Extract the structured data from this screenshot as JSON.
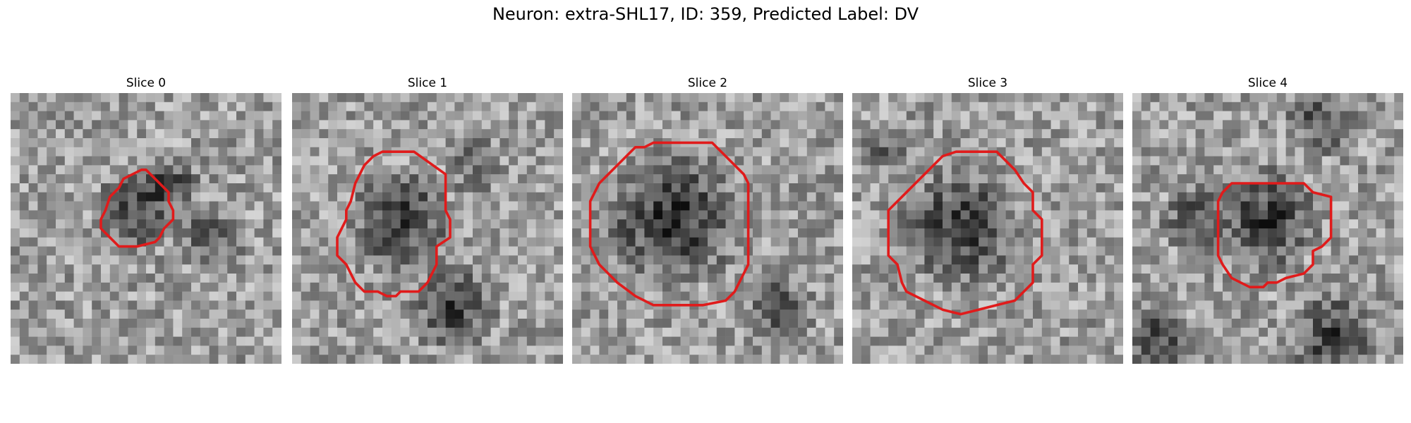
{
  "figure": {
    "title": "Neuron: extra-SHL17, ID: 359, Predicted Label: DV"
  },
  "contour_color": "#e01b1b",
  "panels": [
    {
      "title": "Slice 0",
      "contour": [
        [
          15,
          8.5
        ],
        [
          16,
          9.5
        ],
        [
          16.5,
          10
        ],
        [
          17.5,
          11
        ],
        [
          17.5,
          12
        ],
        [
          18,
          13
        ],
        [
          18,
          14
        ],
        [
          17,
          15
        ],
        [
          16.5,
          16
        ],
        [
          16,
          16.5
        ],
        [
          14,
          17
        ],
        [
          12,
          17
        ],
        [
          11,
          16
        ],
        [
          10,
          15
        ],
        [
          10,
          14
        ],
        [
          10.5,
          13
        ],
        [
          11,
          11.5
        ],
        [
          12,
          10.5
        ],
        [
          12.5,
          9.5
        ],
        [
          13.5,
          9
        ],
        [
          14.5,
          8.5
        ]
      ],
      "dark_blobs": [
        [
          14,
          13,
          5,
          0.35
        ],
        [
          18,
          10,
          3,
          0.3
        ],
        [
          22,
          16,
          4,
          0.25
        ]
      ]
    },
    {
      "title": "Slice 1",
      "contour": [
        [
          10,
          6.5
        ],
        [
          13.5,
          6.5
        ],
        [
          17,
          9
        ],
        [
          17,
          13
        ],
        [
          17.5,
          14
        ],
        [
          17.5,
          16
        ],
        [
          16,
          17
        ],
        [
          16,
          19
        ],
        [
          15,
          21
        ],
        [
          14,
          22
        ],
        [
          12,
          22
        ],
        [
          11.5,
          22.5
        ],
        [
          10.5,
          22.5
        ],
        [
          9.5,
          22
        ],
        [
          8,
          22
        ],
        [
          7,
          21
        ],
        [
          6,
          19
        ],
        [
          5,
          18
        ],
        [
          5,
          16
        ],
        [
          6,
          14
        ],
        [
          6,
          13
        ],
        [
          6.5,
          12
        ],
        [
          7,
          10
        ],
        [
          8,
          8
        ],
        [
          9,
          7
        ]
      ],
      "dark_blobs": [
        [
          12,
          14,
          6,
          0.4
        ],
        [
          18,
          24,
          5,
          0.35
        ],
        [
          20,
          8,
          3,
          0.2
        ]
      ]
    },
    {
      "title": "Slice 2",
      "contour": [
        [
          9,
          5.5
        ],
        [
          15.5,
          5.5
        ],
        [
          18,
          8
        ],
        [
          19,
          9
        ],
        [
          19.5,
          10
        ],
        [
          19.5,
          19
        ],
        [
          19,
          20
        ],
        [
          18,
          22
        ],
        [
          17,
          23
        ],
        [
          14.5,
          23.5
        ],
        [
          9,
          23.5
        ],
        [
          7,
          22.5
        ],
        [
          5,
          21
        ],
        [
          4,
          20
        ],
        [
          3,
          19
        ],
        [
          2,
          17
        ],
        [
          2,
          12
        ],
        [
          3,
          10
        ],
        [
          4,
          9
        ],
        [
          5,
          8
        ],
        [
          7,
          6
        ],
        [
          8,
          6
        ]
      ],
      "dark_blobs": [
        [
          11,
          14,
          8,
          0.45
        ],
        [
          23,
          24,
          4,
          0.3
        ]
      ]
    },
    {
      "title": "Slice 3",
      "contour": [
        [
          11.5,
          6.5
        ],
        [
          16,
          6.5
        ],
        [
          18,
          8.5
        ],
        [
          19,
          10
        ],
        [
          20,
          11
        ],
        [
          20,
          13
        ],
        [
          21,
          14
        ],
        [
          21,
          18
        ],
        [
          20,
          19
        ],
        [
          20,
          21
        ],
        [
          19,
          22
        ],
        [
          18,
          23
        ],
        [
          16,
          23.5
        ],
        [
          14,
          24
        ],
        [
          12,
          24.5
        ],
        [
          10,
          24
        ],
        [
          8,
          23
        ],
        [
          7,
          22.5
        ],
        [
          6,
          22
        ],
        [
          5.5,
          21
        ],
        [
          5,
          19
        ],
        [
          4,
          18
        ],
        [
          4,
          13
        ],
        [
          5,
          12
        ],
        [
          6,
          11
        ],
        [
          7,
          10
        ],
        [
          8,
          9
        ],
        [
          9,
          8
        ],
        [
          10,
          7
        ]
      ],
      "dark_blobs": [
        [
          12,
          15,
          7,
          0.42
        ],
        [
          3,
          6,
          3,
          0.2
        ]
      ]
    },
    {
      "title": "Slice 4",
      "contour": [
        [
          11,
          10
        ],
        [
          19,
          10
        ],
        [
          19.5,
          10.5
        ],
        [
          20,
          11
        ],
        [
          22,
          11.5
        ],
        [
          22,
          16
        ],
        [
          21,
          17
        ],
        [
          20,
          17.5
        ],
        [
          20,
          19
        ],
        [
          19,
          20
        ],
        [
          17,
          20.5
        ],
        [
          16,
          21
        ],
        [
          15,
          21
        ],
        [
          14.5,
          21.5
        ],
        [
          13,
          21.5
        ],
        [
          12,
          21
        ],
        [
          11,
          20.5
        ],
        [
          10,
          19
        ],
        [
          9.5,
          18
        ],
        [
          9.5,
          12
        ],
        [
          10,
          11
        ]
      ],
      "dark_blobs": [
        [
          15,
          14,
          6,
          0.42
        ],
        [
          7,
          14,
          4,
          0.3
        ],
        [
          21,
          3,
          4,
          0.3
        ],
        [
          22,
          27,
          5,
          0.4
        ],
        [
          3,
          27,
          4,
          0.35
        ]
      ]
    }
  ]
}
